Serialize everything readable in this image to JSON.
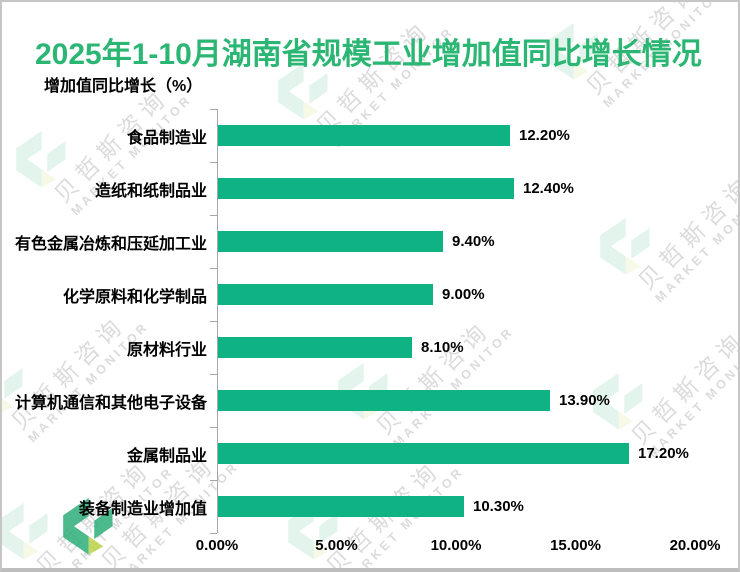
{
  "page": {
    "title": "2025年1-10月湖南省规模工业增加值同比增长情况",
    "axis_title": "增加值同比增长（%）"
  },
  "watermark": {
    "cn": "贝哲斯咨询",
    "en": "MARKET MONITOR"
  },
  "colors": {
    "bar": "#0FB283",
    "title": "#2BB673",
    "axis": "#A6A6A6",
    "logo_teal": "#2FAF7B",
    "logo_lime": "#BCD348"
  },
  "chart_data": {
    "type": "bar",
    "orientation": "horizontal",
    "title": "2025年1-10月湖南省规模工业增加值同比增长情况",
    "xlabel": "增加值同比增长（%）",
    "ylabel": "",
    "xlim": [
      0,
      20
    ],
    "grid": false,
    "legend": "none",
    "categories": [
      "食品制造业",
      "造纸和纸制品业",
      "有色金属冶炼和压延加工业",
      "化学原料和化学制品",
      "原材料行业",
      "计算机通信和其他电子设备",
      "金属制品业",
      "装备制造业增加值"
    ],
    "values": [
      12.2,
      12.4,
      9.4,
      9.0,
      8.1,
      13.9,
      17.2,
      10.3
    ],
    "value_labels": [
      "12.20%",
      "12.40%",
      "9.40%",
      "9.00%",
      "8.10%",
      "13.90%",
      "17.20%",
      "10.30%"
    ],
    "x_ticks": [
      "0.00%",
      "5.00%",
      "10.00%",
      "15.00%",
      "20.00%"
    ]
  }
}
